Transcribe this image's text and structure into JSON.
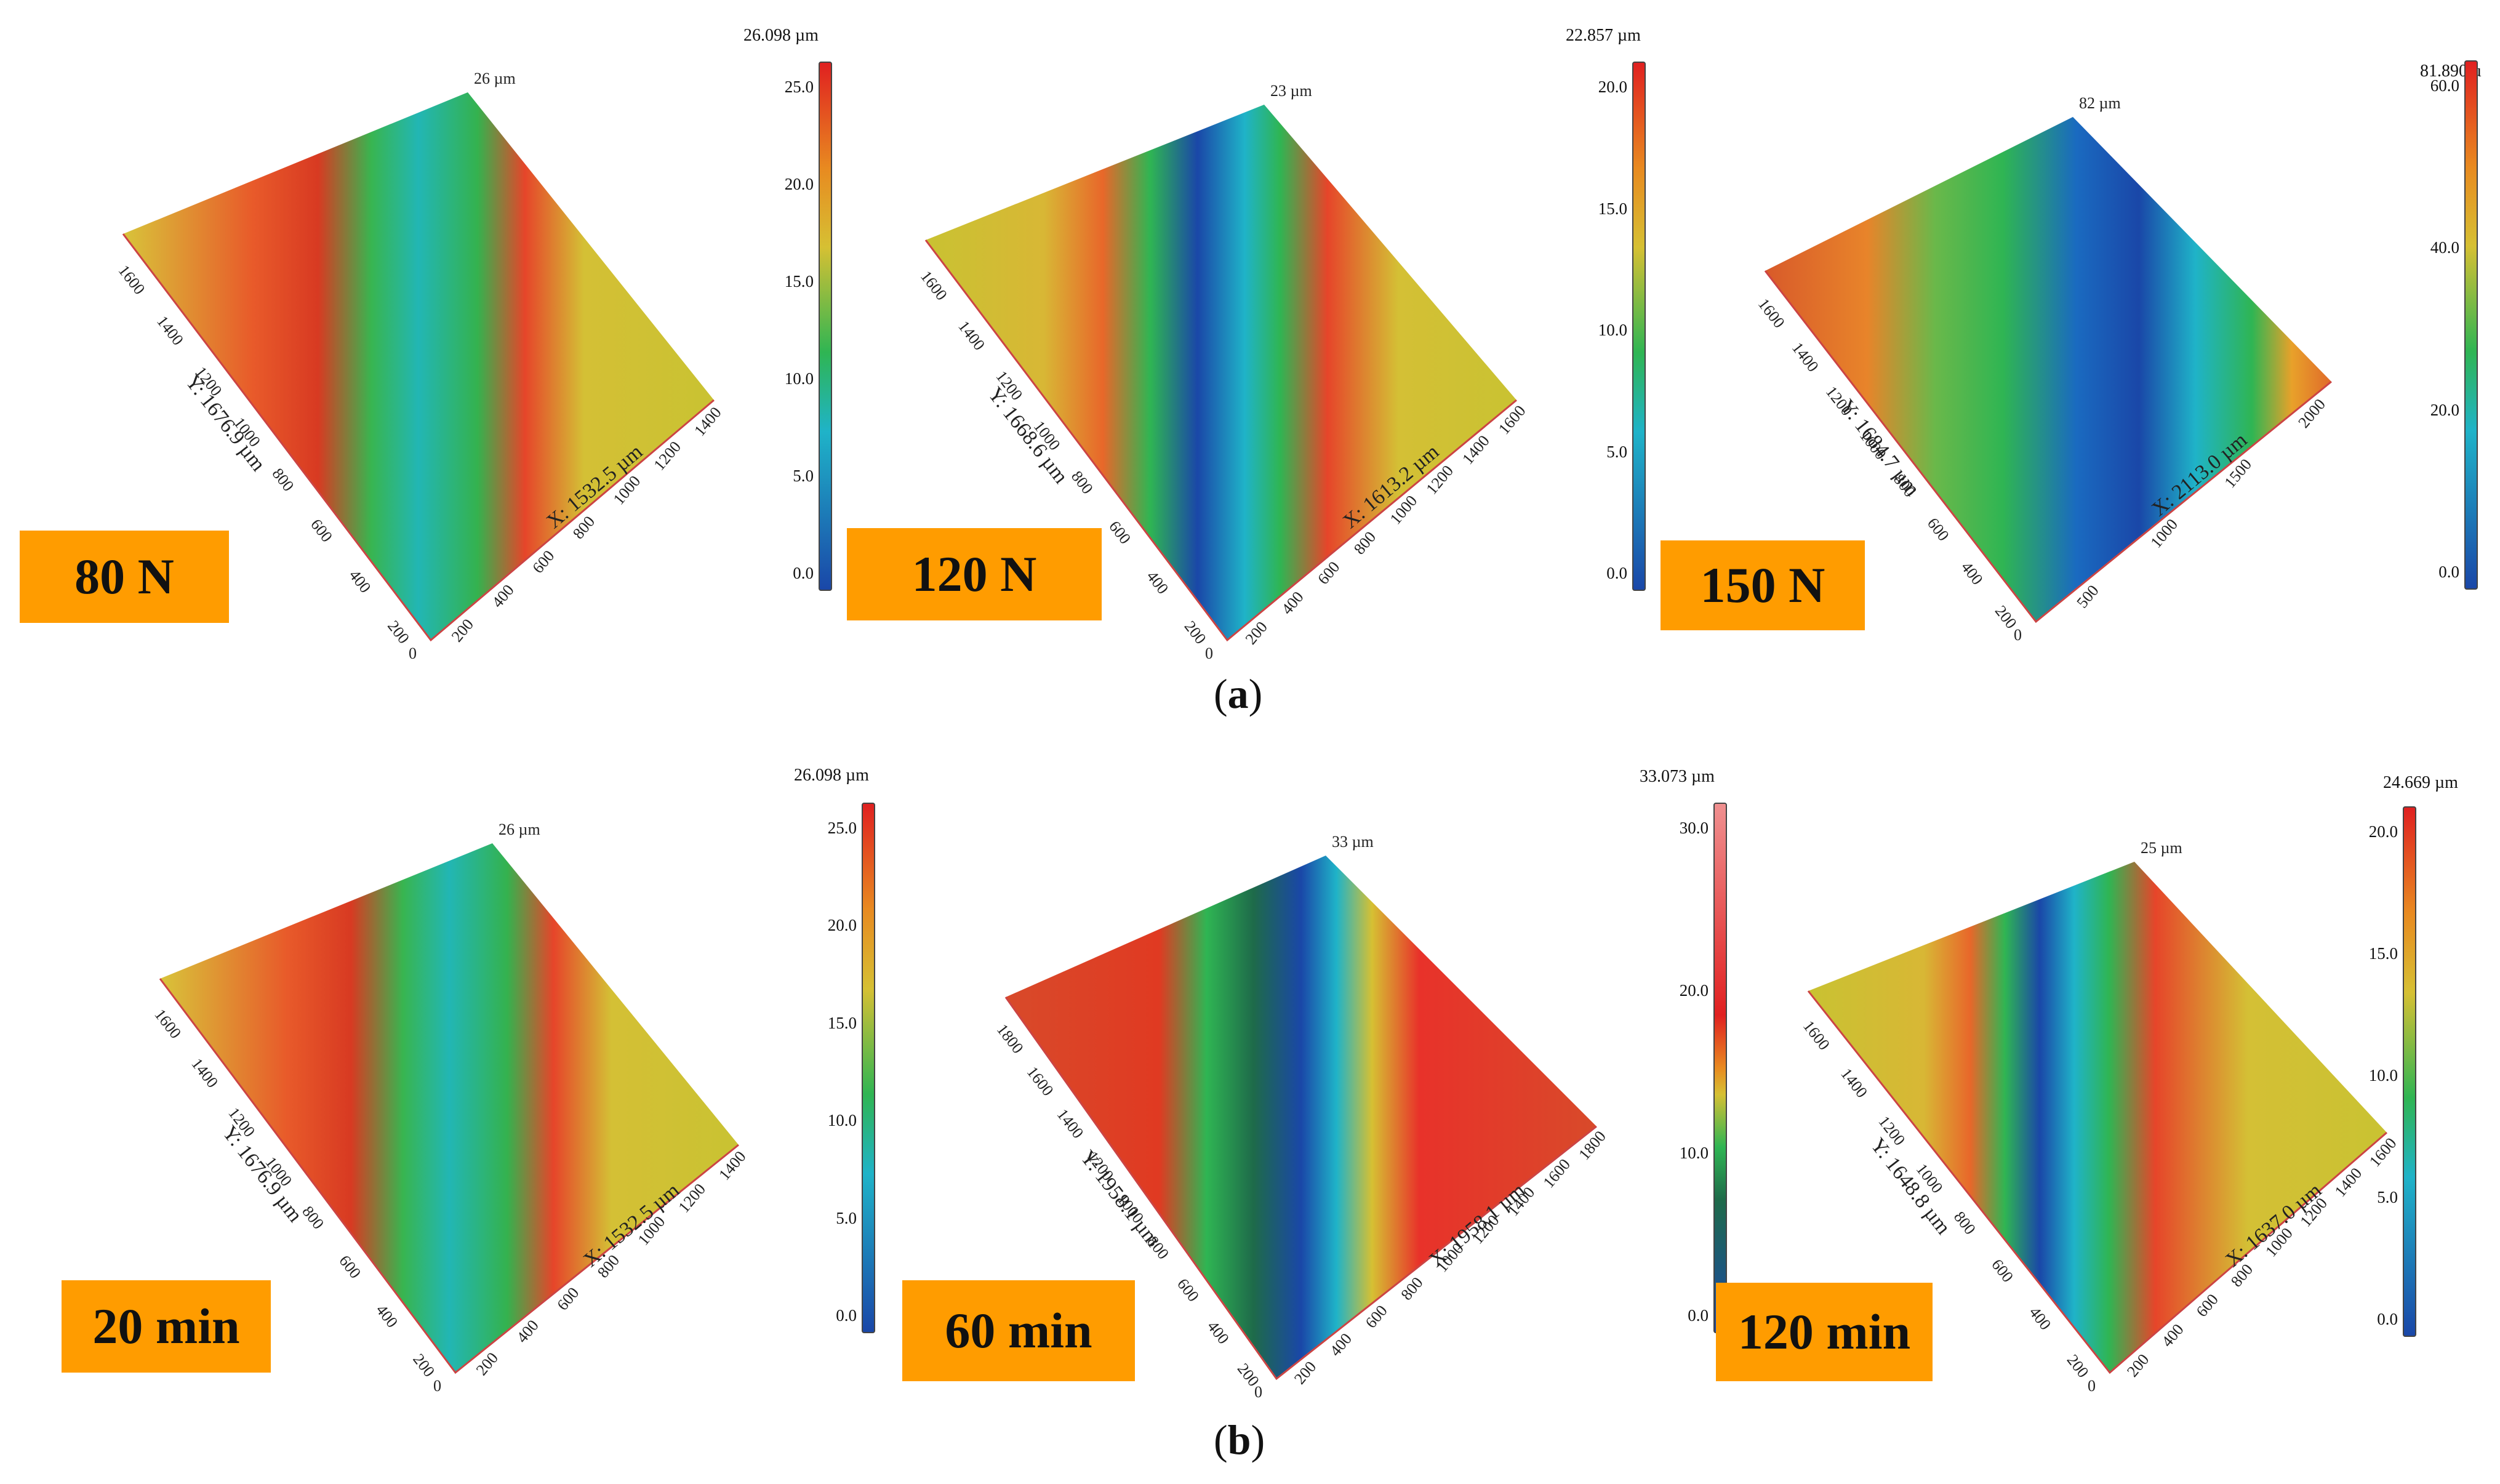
{
  "figure": {
    "caption_a": "(a)",
    "caption_b": "(b)",
    "caption_a_letter": "a",
    "caption_b_letter": "b"
  },
  "panels": [
    {
      "id": "p-80n",
      "label": "80 N",
      "bar_max": "26.098 µm",
      "peak": "26 µm",
      "ticks": [
        "25.0",
        "20.0",
        "15.0",
        "10.0",
        "5.0",
        "0.0"
      ],
      "x_axis": "X: 1532.5 µm",
      "y_axis": "Y: 1676.9 µm",
      "x_ticks": [
        "200",
        "400",
        "600",
        "800",
        "1000",
        "1200",
        "1400"
      ],
      "y_ticks": [
        "1600",
        "1400",
        "1200",
        "1000",
        "800",
        "600",
        "400",
        "200"
      ],
      "origin": "0"
    },
    {
      "id": "p-120n",
      "label": "120 N",
      "bar_max": "22.857 µm",
      "peak": "23 µm",
      "ticks": [
        "20.0",
        "15.0",
        "10.0",
        "5.0",
        "0.0"
      ],
      "x_axis": "X: 1613.2 µm",
      "y_axis": "Y: 1668.6 µm",
      "x_ticks": [
        "200",
        "400",
        "600",
        "800",
        "1000",
        "1200",
        "1400",
        "1600"
      ],
      "y_ticks": [
        "1600",
        "1400",
        "1200",
        "1000",
        "800",
        "600",
        "400",
        "200"
      ],
      "origin": "0"
    },
    {
      "id": "p-150n",
      "label": "150 N",
      "bar_max": "81.890 µ",
      "peak": "82 µm",
      "ticks": [
        "60.0",
        "40.0",
        "20.0",
        "0.0"
      ],
      "x_axis": "X: 2113.0 µm",
      "y_axis": "Y: 1684.7 µm",
      "x_ticks": [
        "500",
        "1000",
        "1500",
        "2000"
      ],
      "y_ticks": [
        "1600",
        "1400",
        "1200",
        "1000",
        "800",
        "600",
        "400",
        "200"
      ],
      "origin": "0"
    },
    {
      "id": "p-20min",
      "label": "20 min",
      "bar_max": "26.098 µm",
      "peak": "26 µm",
      "ticks": [
        "25.0",
        "20.0",
        "15.0",
        "10.0",
        "5.0",
        "0.0"
      ],
      "x_axis": "X: 1532.5 µm",
      "y_axis": "Y: 1676.9 µm",
      "x_ticks": [
        "200",
        "400",
        "600",
        "800",
        "1000",
        "1200",
        "1400"
      ],
      "y_ticks": [
        "1600",
        "1400",
        "1200",
        "1000",
        "800",
        "600",
        "400",
        "200"
      ],
      "origin": "0"
    },
    {
      "id": "p-60min",
      "label": "60 min",
      "bar_max": "33.073 µm",
      "peak": "33 µm",
      "ticks": [
        "30.0",
        "20.0",
        "10.0",
        "0.0"
      ],
      "x_axis": "X: 1958.1 µm",
      "y_axis": "Y: 1958.1 µm",
      "x_ticks": [
        "200",
        "400",
        "600",
        "800",
        "1000",
        "1200",
        "1400",
        "1600",
        "1800"
      ],
      "y_ticks": [
        "1800",
        "1600",
        "1400",
        "1200",
        "1000",
        "800",
        "600",
        "400",
        "200"
      ],
      "origin": "0"
    },
    {
      "id": "p-120min",
      "label": "120 min",
      "bar_max": "24.669 µm",
      "peak": "25 µm",
      "ticks": [
        "20.0",
        "15.0",
        "10.0",
        "5.0",
        "0.0"
      ],
      "x_axis": "X: 1637.0 µm",
      "y_axis": "Y: 1648.8 µm",
      "x_ticks": [
        "200",
        "400",
        "600",
        "800",
        "1000",
        "1200",
        "1400",
        "1600"
      ],
      "y_ticks": [
        "1600",
        "1400",
        "1200",
        "1000",
        "800",
        "600",
        "400",
        "200"
      ],
      "origin": "0"
    }
  ],
  "colors": {
    "label_bg": "#ff9c00",
    "surface_red": "#e8492a",
    "surface_yellow": "#c9c232",
    "surface_green": "#2fb553",
    "surface_cyan": "#1fb3c8",
    "surface_blue": "#1a47a8"
  }
}
